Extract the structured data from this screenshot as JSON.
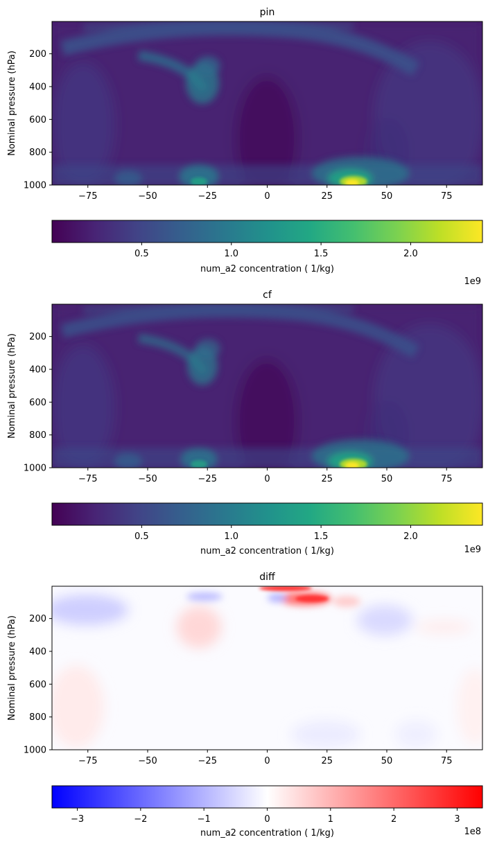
{
  "chart_data": [
    {
      "type": "heatmap",
      "title": "pin",
      "xlabel": "",
      "ylabel": "Nominal pressure (hPa)",
      "xlim": [
        -90,
        90
      ],
      "ylim": [
        1000,
        3
      ],
      "x_ticks": [
        -75,
        -50,
        -25,
        0,
        25,
        50,
        75
      ],
      "x_tick_labels": [
        "−75",
        "−50",
        "−25",
        "0",
        "25",
        "50",
        "75"
      ],
      "y_ticks": [
        200,
        400,
        600,
        800,
        1000
      ],
      "y_tick_labels": [
        "200",
        "400",
        "600",
        "800",
        "1000"
      ],
      "colormap": "viridis",
      "colorbar": {
        "orientation": "horizontal",
        "range": [
          0.0,
          2.4
        ],
        "ticks": [
          0.5,
          1.0,
          1.5,
          2.0
        ],
        "tick_labels": [
          "0.5",
          "1.0",
          "1.5",
          "2.0"
        ],
        "label": "num_a2 concentration ( 1/kg)",
        "offset_text": "1e9"
      },
      "features": [
        {
          "kind": "surface_max",
          "lat": 38,
          "pressure": 990,
          "value": 2.4
        },
        {
          "kind": "surface",
          "lat": -28,
          "pressure": 980,
          "value": 0.9
        },
        {
          "kind": "upper_arc",
          "lat": 0,
          "pressure": 90,
          "value": 0.75
        },
        {
          "kind": "plume",
          "lat": -28,
          "pressure": 280,
          "value": 0.9
        }
      ]
    },
    {
      "type": "heatmap",
      "title": "cf",
      "xlabel": "",
      "ylabel": "Nominal pressure (hPa)",
      "xlim": [
        -90,
        90
      ],
      "ylim": [
        1000,
        3
      ],
      "x_ticks": [
        -75,
        -50,
        -25,
        0,
        25,
        50,
        75
      ],
      "x_tick_labels": [
        "−75",
        "−50",
        "−25",
        "0",
        "25",
        "50",
        "75"
      ],
      "y_ticks": [
        200,
        400,
        600,
        800,
        1000
      ],
      "y_tick_labels": [
        "200",
        "400",
        "600",
        "800",
        "1000"
      ],
      "colormap": "viridis",
      "colorbar": {
        "orientation": "horizontal",
        "range": [
          0.0,
          2.4
        ],
        "ticks": [
          0.5,
          1.0,
          1.5,
          2.0
        ],
        "tick_labels": [
          "0.5",
          "1.0",
          "1.5",
          "2.0"
        ],
        "label": "num_a2 concentration ( 1/kg)",
        "offset_text": "1e9"
      },
      "features": [
        {
          "kind": "surface_max",
          "lat": 38,
          "pressure": 990,
          "value": 2.4
        },
        {
          "kind": "surface",
          "lat": -28,
          "pressure": 980,
          "value": 0.85
        },
        {
          "kind": "upper_arc",
          "lat": 0,
          "pressure": 90,
          "value": 0.7
        },
        {
          "kind": "plume",
          "lat": -28,
          "pressure": 280,
          "value": 0.85
        }
      ]
    },
    {
      "type": "heatmap",
      "title": "diff",
      "xlabel": "",
      "ylabel": "Nominal pressure (hPa)",
      "xlim": [
        -90,
        90
      ],
      "ylim": [
        1000,
        3
      ],
      "x_ticks": [
        -75,
        -50,
        -25,
        0,
        25,
        50,
        75
      ],
      "x_tick_labels": [
        "−75",
        "−50",
        "−25",
        "0",
        "25",
        "50",
        "75"
      ],
      "y_ticks": [
        200,
        400,
        600,
        800,
        1000
      ],
      "y_tick_labels": [
        "200",
        "400",
        "600",
        "800",
        "1000"
      ],
      "colormap": "bwr",
      "colorbar": {
        "orientation": "horizontal",
        "range": [
          -3.4,
          3.4
        ],
        "ticks": [
          -3,
          -2,
          -1,
          0,
          1,
          2,
          3
        ],
        "tick_labels": [
          "−3",
          "−2",
          "−1",
          "0",
          "1",
          "2",
          "3"
        ],
        "label": "num_a2 concentration ( 1/kg)",
        "offset_text": "1e8"
      },
      "features": [
        {
          "kind": "max",
          "lat": 10,
          "pressure": 20,
          "value": 3.4
        },
        {
          "kind": "max",
          "lat": 20,
          "pressure": 80,
          "value": 2.8
        },
        {
          "kind": "positive",
          "lat": -30,
          "pressure": 250,
          "value": 0.6
        },
        {
          "kind": "positive",
          "lat": -80,
          "pressure": 650,
          "value": 0.4
        },
        {
          "kind": "negative",
          "lat": -75,
          "pressure": 110,
          "value": -0.9
        },
        {
          "kind": "negative",
          "lat": 50,
          "pressure": 200,
          "value": -0.8
        },
        {
          "kind": "negative",
          "lat": -30,
          "pressure": 50,
          "value": -1.0
        },
        {
          "kind": "negative",
          "lat": 25,
          "pressure": 900,
          "value": -0.3
        }
      ]
    }
  ]
}
